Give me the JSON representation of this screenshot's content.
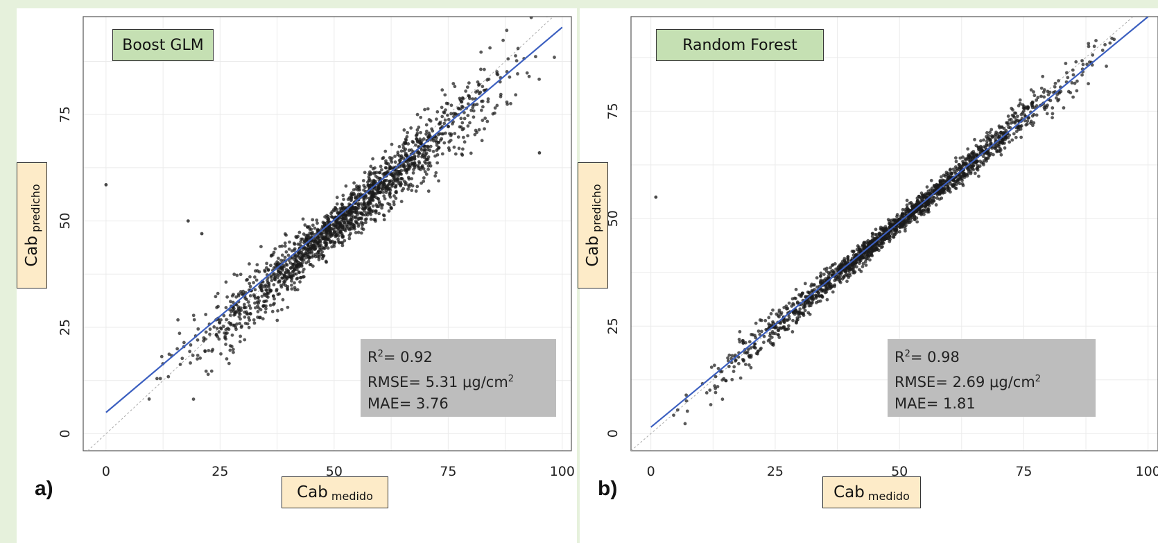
{
  "chart_data": [
    {
      "type": "scatter",
      "panel_letter": "a)",
      "title": "Boost GLM",
      "xlabel": "Cab",
      "xlabel_sub": "medido",
      "ylabel": "Cab",
      "ylabel_sub": "predicho",
      "xlim": [
        -5,
        102
      ],
      "ylim": [
        -4,
        98
      ],
      "xticks": [
        0,
        25,
        50,
        75,
        100
      ],
      "yticks": [
        0,
        25,
        50,
        75
      ],
      "xtick_labels": [
        "0",
        "25",
        "50",
        "75",
        "100"
      ],
      "ytick_labels": [
        "0",
        "25",
        "50",
        "75"
      ],
      "grid": true,
      "point_color": "#1a1a1a",
      "fit_color": "#3b5fc0",
      "fit_line": {
        "intercept": 5.0,
        "slope": 0.905,
        "x_range": [
          0,
          100
        ]
      },
      "identity_line": true,
      "stats": {
        "r2_label": "R",
        "r2_value": "= 0.92",
        "rmse_label": "RMSE= 5.31 μg/cm",
        "mae_label": "MAE= 3.76"
      },
      "notable_points": [
        [
          0,
          58.5
        ],
        [
          18,
          50
        ],
        [
          21,
          47
        ],
        [
          95,
          66
        ]
      ],
      "scatter_spec": {
        "n": 1700,
        "slope": 0.94,
        "intercept": 1.5,
        "noise_low": 2.5,
        "noise_high": 6.5,
        "x_min": 5,
        "x_max": 100,
        "seed": 7
      }
    },
    {
      "type": "scatter",
      "panel_letter": "b)",
      "title": "Random Forest",
      "xlabel": "Cab",
      "xlabel_sub": "medido",
      "ylabel": "Cab",
      "ylabel_sub": "predicho",
      "xlim": [
        -4,
        102
      ],
      "ylim": [
        -4,
        97
      ],
      "xticks": [
        0,
        25,
        50,
        75,
        100
      ],
      "yticks": [
        0,
        25,
        50,
        75
      ],
      "xtick_labels": [
        "0",
        "25",
        "50",
        "75",
        "100"
      ],
      "ytick_labels": [
        "0",
        "25",
        "50",
        "75"
      ],
      "grid": true,
      "point_color": "#1a1a1a",
      "fit_color": "#3b5fc0",
      "fit_line": {
        "intercept": 1.5,
        "slope": 0.955,
        "x_range": [
          0,
          100
        ]
      },
      "identity_line": true,
      "stats": {
        "r2_label": "R",
        "r2_value": "= 0.98",
        "rmse_label": "RMSE= 2.69 μg/cm",
        "mae_label": "MAE= 1.81"
      },
      "notable_points": [
        [
          1,
          55
        ]
      ],
      "scatter_spec": {
        "n": 1700,
        "slope": 0.97,
        "intercept": 0.5,
        "noise_low": 1.0,
        "noise_high": 3.0,
        "x_min": 1,
        "x_max": 98,
        "seed": 13
      }
    }
  ]
}
